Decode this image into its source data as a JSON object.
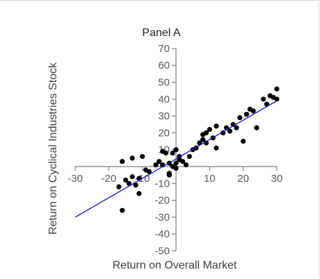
{
  "chart_data": {
    "type": "scatter",
    "title": "Panel A",
    "xlabel": "Return on Overall Market",
    "ylabel": "Return on Cyclical Industries Stock",
    "xlim": [
      -30,
      30
    ],
    "ylim": [
      -50,
      70
    ],
    "x_ticks": [
      -30,
      -20,
      -10,
      10,
      20,
      30
    ],
    "y_ticks": [
      70,
      60,
      50,
      40,
      30,
      20,
      10,
      -10,
      -20,
      -30,
      -40,
      -50
    ],
    "grid": false,
    "legend": "none",
    "colors": {
      "points": "#000000",
      "fit_line": "#1f1fbf",
      "axes": "#7f7f7f"
    },
    "series": [
      {
        "points": [
          [
            -16,
            3
          ],
          [
            -15,
            -8
          ],
          [
            -16,
            -26
          ],
          [
            -17,
            -12
          ],
          [
            -14,
            -10
          ],
          [
            -13,
            5
          ],
          [
            -13,
            -6
          ],
          [
            -12,
            -11
          ],
          [
            -11,
            -7
          ],
          [
            -11,
            -16
          ],
          [
            -10,
            6
          ],
          [
            -9,
            -2
          ],
          [
            -8,
            -3
          ],
          [
            -6,
            1
          ],
          [
            -5,
            3
          ],
          [
            -4,
            1
          ],
          [
            -4,
            9
          ],
          [
            -3,
            8
          ],
          [
            -2,
            -4
          ],
          [
            -2,
            -5
          ],
          [
            -2,
            2
          ],
          [
            -1,
            0
          ],
          [
            -1,
            8
          ],
          [
            0,
            2
          ],
          [
            0,
            10
          ],
          [
            0,
            -1
          ],
          [
            1,
            4
          ],
          [
            1,
            6
          ],
          [
            2,
            3
          ],
          [
            3,
            1
          ],
          [
            4,
            6
          ],
          [
            5,
            10
          ],
          [
            6,
            11
          ],
          [
            7,
            14
          ],
          [
            8,
            16
          ],
          [
            8,
            19
          ],
          [
            9,
            14
          ],
          [
            9,
            20
          ],
          [
            10,
            22
          ],
          [
            11,
            17
          ],
          [
            12,
            24
          ],
          [
            12,
            11
          ],
          [
            14,
            20
          ],
          [
            15,
            23
          ],
          [
            16,
            21
          ],
          [
            17,
            25
          ],
          [
            18,
            23
          ],
          [
            19,
            29
          ],
          [
            20,
            15
          ],
          [
            21,
            31
          ],
          [
            22,
            34
          ],
          [
            23,
            33
          ],
          [
            24,
            23
          ],
          [
            26,
            40
          ],
          [
            27,
            37
          ],
          [
            28,
            42
          ],
          [
            29,
            41
          ],
          [
            30,
            46
          ],
          [
            30,
            40
          ]
        ]
      }
    ],
    "fit_line": {
      "x": [
        -30,
        30
      ],
      "y": [
        -30,
        39
      ]
    }
  }
}
